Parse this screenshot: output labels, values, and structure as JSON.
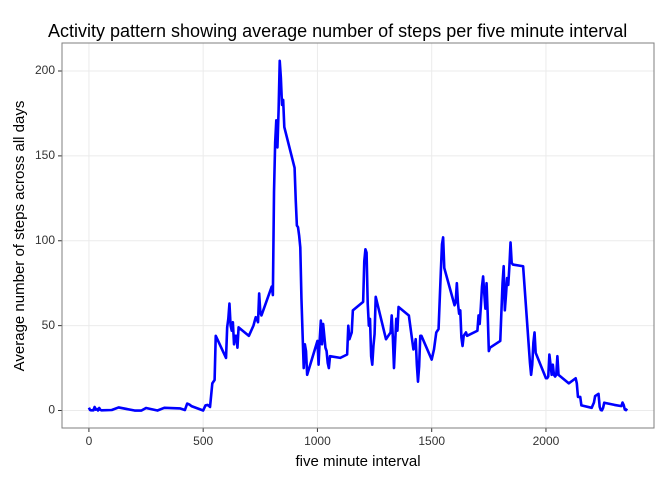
{
  "chart_data": {
    "type": "line",
    "title": "Activity pattern showing average number of steps per five minute interval",
    "x_label": "five minute interval",
    "y_label": "Average number of steps across all days",
    "x": [
      0,
      5,
      10,
      15,
      20,
      25,
      30,
      35,
      40,
      45,
      50,
      55,
      100,
      130,
      200,
      230,
      250,
      300,
      330,
      400,
      420,
      430,
      440,
      450,
      500,
      510,
      520,
      530,
      540,
      550,
      555,
      600,
      605,
      610,
      615,
      620,
      625,
      630,
      635,
      640,
      645,
      650,
      655,
      700,
      720,
      730,
      740,
      745,
      750,
      755,
      800,
      805,
      810,
      815,
      820,
      825,
      830,
      835,
      840,
      845,
      850,
      855,
      900,
      905,
      910,
      915,
      920,
      925,
      930,
      935,
      940,
      945,
      950,
      955,
      1000,
      1005,
      1010,
      1015,
      1020,
      1025,
      1030,
      1035,
      1040,
      1045,
      1050,
      1055,
      1100,
      1130,
      1135,
      1140,
      1145,
      1150,
      1155,
      1200,
      1205,
      1210,
      1215,
      1220,
      1225,
      1230,
      1235,
      1240,
      1245,
      1250,
      1255,
      1300,
      1320,
      1325,
      1330,
      1335,
      1340,
      1345,
      1350,
      1355,
      1400,
      1420,
      1425,
      1430,
      1435,
      1440,
      1445,
      1450,
      1455,
      1500,
      1510,
      1520,
      1525,
      1530,
      1535,
      1540,
      1545,
      1550,
      1555,
      1600,
      1605,
      1610,
      1615,
      1620,
      1625,
      1630,
      1635,
      1640,
      1645,
      1650,
      1655,
      1700,
      1705,
      1710,
      1715,
      1720,
      1725,
      1730,
      1735,
      1740,
      1745,
      1750,
      1755,
      1800,
      1805,
      1810,
      1815,
      1820,
      1825,
      1830,
      1835,
      1840,
      1845,
      1850,
      1855,
      1900,
      1930,
      1935,
      1940,
      1945,
      1950,
      1955,
      2000,
      2005,
      2010,
      2015,
      2020,
      2025,
      2030,
      2035,
      2040,
      2045,
      2050,
      2055,
      2100,
      2130,
      2135,
      2140,
      2145,
      2150,
      2155,
      2200,
      2210,
      2215,
      2230,
      2235,
      2240,
      2245,
      2250,
      2255,
      2300,
      2330,
      2335,
      2340,
      2345,
      2350,
      2355
    ],
    "series": [
      {
        "color": "#0000ff",
        "values": [
          1.7,
          0.3,
          0.1,
          0.2,
          0.1,
          2.1,
          0.5,
          0.9,
          0,
          1.5,
          0.4,
          0.1,
          0.3,
          1.8,
          0,
          0,
          1.5,
          0,
          1.6,
          1.2,
          0.3,
          4.1,
          3.5,
          2.5,
          0,
          3,
          3.3,
          2.1,
          16,
          18,
          44,
          31,
          49,
          54,
          63,
          50,
          47,
          52,
          39,
          44,
          44,
          37,
          49,
          44,
          50,
          55,
          52,
          69,
          58,
          56,
          73,
          68,
          129,
          158,
          171,
          155,
          177,
          206,
          196,
          180,
          183,
          167,
          143,
          124,
          109,
          108,
          103,
          96,
          66,
          45,
          25,
          39,
          35,
          21,
          41,
          27,
          42,
          53,
          39,
          51,
          44,
          37,
          35,
          28,
          25,
          32,
          31,
          33,
          50,
          42,
          44,
          46,
          59,
          64,
          88,
          95,
          93,
          63,
          50,
          54,
          32,
          27,
          38,
          45,
          67,
          42,
          46,
          56,
          43,
          25,
          40,
          54,
          47,
          61,
          56,
          36,
          37,
          42,
          27,
          17,
          26,
          44,
          44,
          30,
          36,
          46,
          47,
          48,
          65,
          82,
          98,
          102,
          84,
          62,
          64,
          75,
          63,
          57,
          59,
          43,
          38,
          44,
          45,
          46,
          44,
          47,
          56,
          51,
          61,
          73,
          79,
          69,
          60,
          75,
          57,
          35,
          37,
          41,
          58,
          75,
          85,
          59,
          68,
          78,
          74,
          85,
          99,
          87,
          86,
          85,
          28,
          21,
          27,
          40,
          46,
          34,
          19,
          19,
          20,
          33,
          27,
          21,
          27,
          21,
          20,
          21,
          32,
          21,
          16,
          19,
          16,
          8,
          8,
          8,
          3,
          1.6,
          4.7,
          8.5,
          9.8,
          2.2,
          0.3,
          0.1,
          1.6,
          4.6,
          3.3,
          2.6,
          4.7,
          3.3,
          0.6,
          0.2,
          1.1
        ]
      }
    ],
    "xlim": [
      -117.75,
      2472.75
    ],
    "ylim": [
      -10.3,
      216.5
    ],
    "xticks": [
      0,
      500,
      1000,
      1500,
      2000
    ],
    "yticks": [
      0,
      50,
      100,
      150,
      200
    ],
    "grid": true
  }
}
